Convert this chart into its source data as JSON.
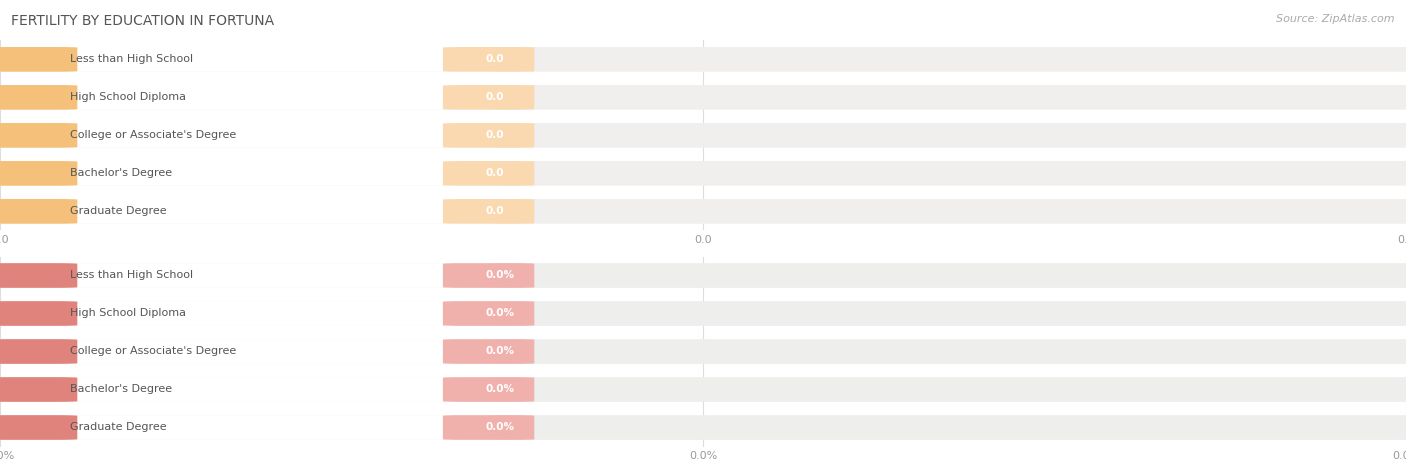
{
  "title": "FERTILITY BY EDUCATION IN FORTUNA",
  "source": "Source: ZipAtlas.com",
  "categories": [
    "Less than High School",
    "High School Diploma",
    "College or Associate's Degree",
    "Bachelor's Degree",
    "Graduate Degree"
  ],
  "values_top": [
    0.0,
    0.0,
    0.0,
    0.0,
    0.0
  ],
  "values_bottom": [
    0.0,
    0.0,
    0.0,
    0.0,
    0.0
  ],
  "bar_accent_top": "#F5C07A",
  "bar_light_top": "#FAD9B0",
  "bar_bg_top": "#F0EFEE",
  "bar_accent_bottom": "#E0837D",
  "bar_light_bottom": "#F0B0AC",
  "bar_bg_bottom": "#EEEEED",
  "text_color": "#555555",
  "val_color_top": "#C8783A",
  "val_color_bottom": "#B85050",
  "bg_color": "#FFFFFF",
  "grid_color": "#DDDDDD",
  "title_color": "#555555",
  "source_color": "#AAAAAA",
  "tick_color": "#999999",
  "title_fontsize": 10,
  "source_fontsize": 8,
  "bar_label_fontsize": 7.5,
  "cat_label_fontsize": 8,
  "tick_fontsize": 8
}
